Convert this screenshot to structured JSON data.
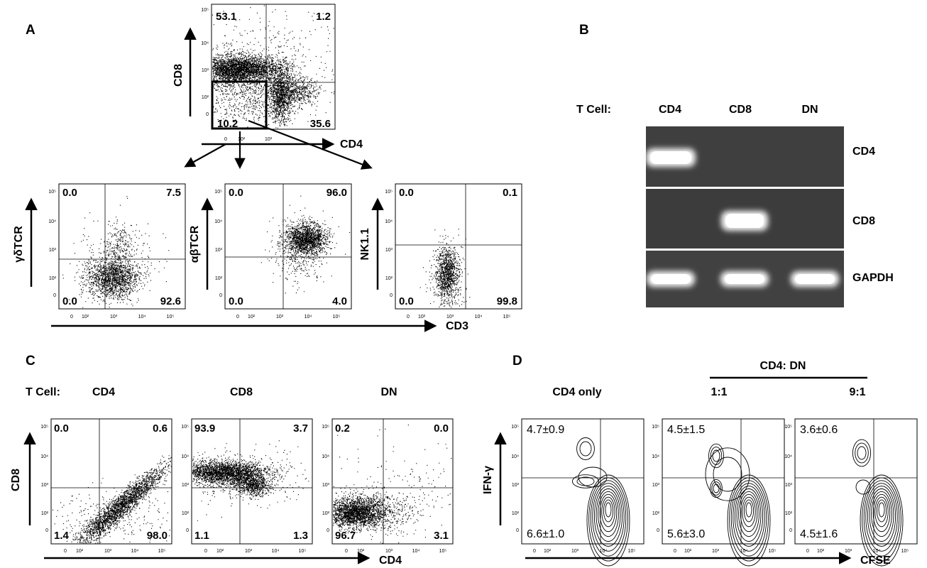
{
  "panel_letters": {
    "a": "A",
    "b": "B",
    "c": "C",
    "d": "D"
  },
  "tick_labels": {
    "t0": "0",
    "t2": "10²",
    "t3": "10³",
    "t4": "10⁴",
    "t5": "10⁵"
  },
  "panel_a": {
    "top_plot": {
      "ylabel": "CD8",
      "xlabel": "CD4",
      "q_ul": "53.1",
      "q_ur": "1.2",
      "q_ll": "10.2",
      "q_lr": "35.6"
    },
    "bottom_xlabel": "CD3",
    "plots": [
      {
        "ylabel": "γδTCR",
        "q_ul": "0.0",
        "q_ur": "7.5",
        "q_ll": "0.0",
        "q_lr": "92.6"
      },
      {
        "ylabel": "αβTCR",
        "q_ul": "0.0",
        "q_ur": "96.0",
        "q_ll": "0.0",
        "q_lr": "4.0"
      },
      {
        "ylabel": "NK1.1",
        "q_ul": "0.0",
        "q_ur": "0.1",
        "q_ll": "0.0",
        "q_lr": "99.8"
      }
    ]
  },
  "panel_b": {
    "row_label": "T Cell:",
    "lanes": [
      "CD4",
      "CD8",
      "DN"
    ],
    "bands": [
      "CD4",
      "CD8",
      "GAPDH"
    ],
    "band_presence": {
      "CD4": [
        1,
        0,
        0
      ],
      "CD8": [
        0,
        1,
        0
      ],
      "GAPDH": [
        1,
        1,
        1
      ]
    }
  },
  "panel_c": {
    "row_label": "T Cell:",
    "ylabel": "CD8",
    "xlabel": "CD4",
    "plots": [
      {
        "title": "CD4",
        "q_ul": "0.0",
        "q_ur": "0.6",
        "q_ll": "1.4",
        "q_lr": "98.0"
      },
      {
        "title": "CD8",
        "q_ul": "93.9",
        "q_ur": "3.7",
        "q_ll": "1.1",
        "q_lr": "1.3"
      },
      {
        "title": "DN",
        "q_ul": "0.2",
        "q_ur": "0.0",
        "q_ll": "96.7",
        "q_lr": "3.1"
      }
    ]
  },
  "panel_d": {
    "title_single": "CD4 only",
    "ratio_header": "CD4: DN",
    "ratio_1": "1:1",
    "ratio_2": "9:1",
    "ylabel": "IFN-γ",
    "xlabel": "CFSE",
    "plots": [
      {
        "q_ul": "4.7±0.9",
        "q_ll": "6.6±1.0"
      },
      {
        "q_ul": "4.5±1.5",
        "q_ll": "5.6±3.0"
      },
      {
        "q_ul": "3.6±0.6",
        "q_ll": "4.5±1.6"
      }
    ]
  },
  "colors": {
    "ink": "#000000",
    "gel_background": "#3f3f3f",
    "band": "#f4f4f4"
  }
}
